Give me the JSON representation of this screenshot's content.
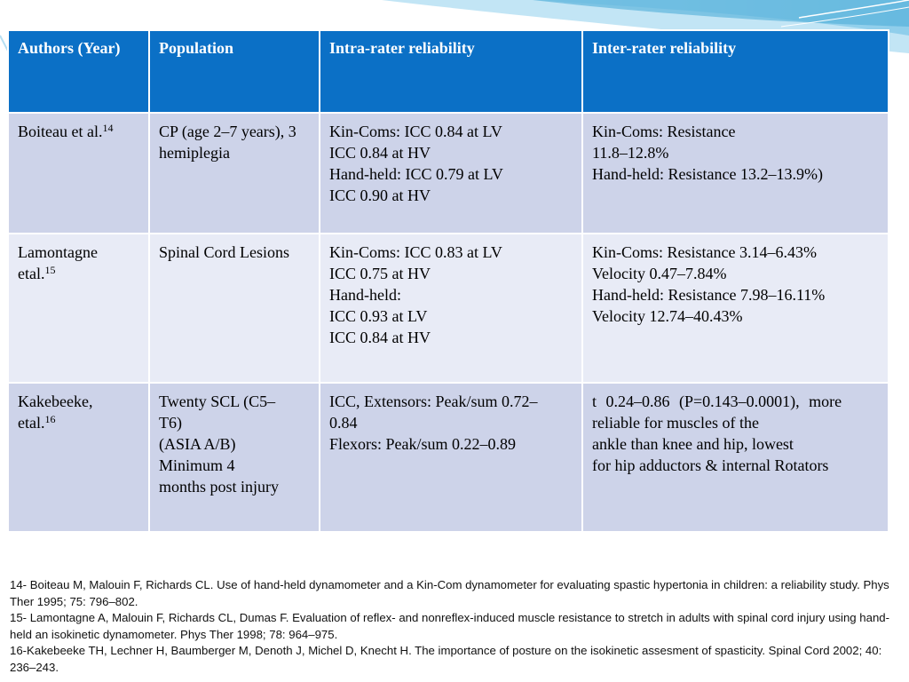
{
  "table": {
    "headers": [
      "Authors (Year)",
      "Population",
      "Intra-rater reliability",
      "Inter-rater reliability"
    ],
    "rows": [
      {
        "author": {
          "name": "Boiteau et al.",
          "ref": "14"
        },
        "population": [
          "CP (age 2–7 years), 3",
          "hemiplegia"
        ],
        "intra": [
          "Kin-Coms: ICC 0.84 at LV",
          "ICC 0.84 at HV",
          "Hand-held: ICC 0.79 at LV",
          "ICC 0.90 at HV"
        ],
        "inter": [
          "Kin-Coms: Resistance",
          "11.8–12.8%",
          "Hand-held: Resistance 13.2–13.9%)"
        ]
      },
      {
        "author": {
          "name_line1": "Lamontagne",
          "name_line2": "etal.",
          "ref": "15"
        },
        "population": [
          "Spinal Cord Lesions"
        ],
        "intra": [
          "Kin-Coms: ICC 0.83 at LV",
          "ICC 0.75 at HV",
          "Hand-held:",
          "ICC 0.93 at LV",
          "ICC 0.84 at HV"
        ],
        "inter": [
          "Kin-Coms: Resistance 3.14–6.43%",
          "Velocity 0.47–7.84%",
          "Hand-held: Resistance 7.98–16.11%",
          "Velocity 12.74–40.43%"
        ]
      },
      {
        "author": {
          "name_line1": "Kakebeeke,",
          "name_line2": "etal.",
          "ref": "16"
        },
        "population": [
          "Twenty SCL (C5–",
          "T6)",
          "(ASIA A/B)",
          "Minimum 4",
          "months post injury"
        ],
        "intra": [
          "ICC, Extensors: Peak/sum 0.72–",
          "0.84",
          "Flexors: Peak/sum 0.22–0.89"
        ],
        "inter": [
          "t 0.24–0.86 (P=0.143–0.0001), more",
          "reliable for muscles of the",
          "ankle than knee and hip, lowest",
          "for hip adductors & internal Rotators"
        ]
      }
    ]
  },
  "references": [
    "14- Boiteau M, Malouin F, Richards CL. Use of hand-held dynamometer and a Kin-Com dynamometer for evaluating spastic hypertonia in children: a reliability study. Phys Ther 1995; 75: 796–802.",
    "15- Lamontagne A, Malouin F, Richards CL, Dumas F. Evaluation of reflex- and nonreflex-induced muscle resistance to stretch in adults with spinal cord injury using hand-held an isokinetic dynamometer. Phys Ther 1998; 78: 964–975.",
    "16-Kakebeeke TH, Lechner H, Baumberger M, Denoth J, Michel D, Knecht H. The importance of posture on the isokinetic assesment of spasticity. Spinal Cord 2002; 40: 236–243."
  ],
  "colors": {
    "header_bg": "#0b70c6",
    "row_dark": "#cdd3e9",
    "row_light": "#e8ebf6",
    "accent_wave": "#6fc3e6"
  }
}
